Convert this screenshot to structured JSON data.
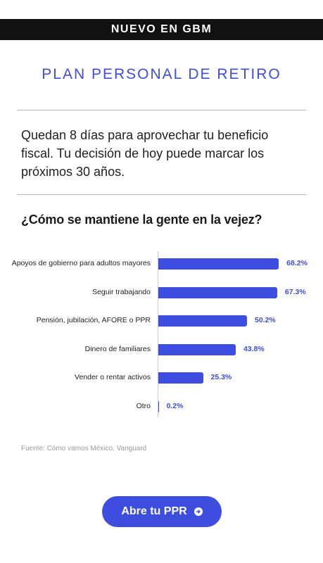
{
  "banner": {
    "text": "NUEVO EN GBM"
  },
  "header": {
    "title": "PLAN PERSONAL DE RETIRO"
  },
  "intro": {
    "text": "Quedan 8 días para aprovechar tu beneficio fiscal. Tu decisión de hoy puede marcar los próximos 30 años."
  },
  "chart_data": {
    "type": "bar",
    "orientation": "horizontal",
    "title": "¿Cómo se mantiene la gente en la vejez?",
    "categories": [
      "Apoyos de gobierno para adultos mayores",
      "Seguir trabajando",
      "Pensión, jubilación, AFORE o PPR",
      "Dinero de familiares",
      "Vender o rentar activos",
      "Otro"
    ],
    "values": [
      68.2,
      67.3,
      50.2,
      43.8,
      25.3,
      0.2
    ],
    "value_labels": [
      "68.2%",
      "67.3%",
      "50.2%",
      "43.8%",
      "25.3%",
      "0.2%"
    ],
    "xlim": [
      0,
      100
    ],
    "bar_color": "#3d4de0",
    "grid": false
  },
  "source": {
    "text": "Fuente: Cómo vamos México, Vanguard"
  },
  "cta": {
    "label": "Abre tu PPR",
    "icon": "arrow-right-icon"
  },
  "colors": {
    "accent": "#3d4de0",
    "banner_bg": "#111111"
  }
}
